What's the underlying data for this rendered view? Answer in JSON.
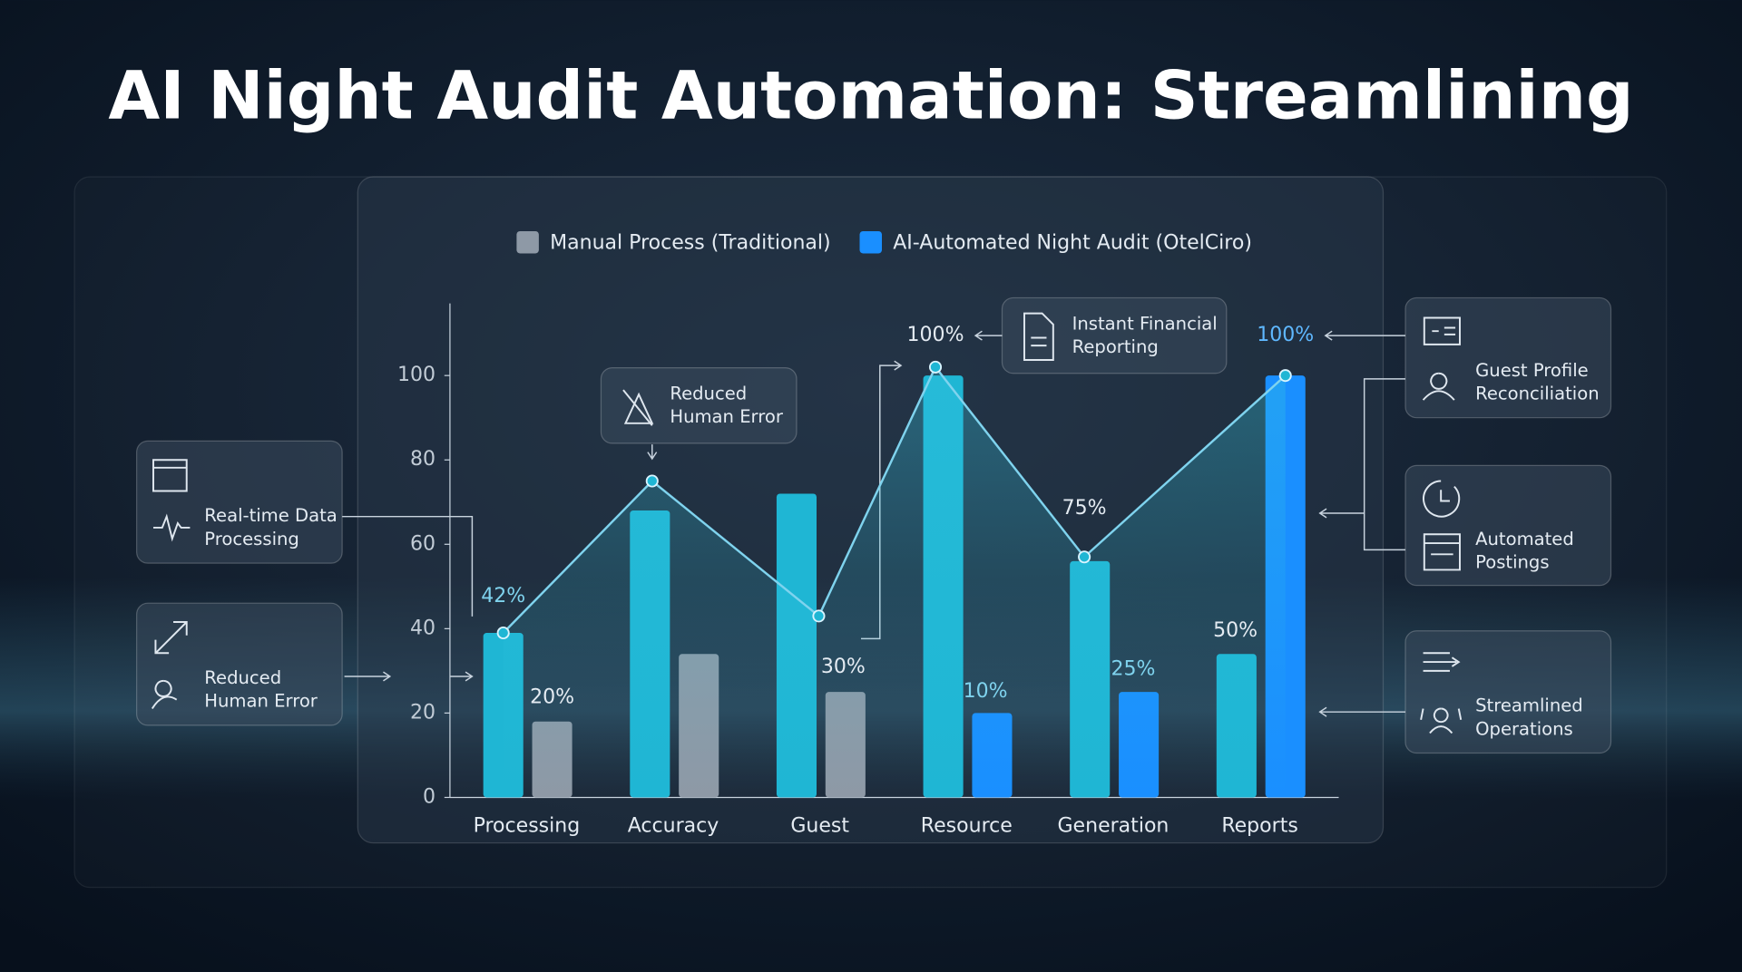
{
  "title": "AI Night Audit Automation: Streamlining",
  "chart_data": {
    "type": "bar",
    "categories": [
      "Processing",
      "Accuracy",
      "Guest",
      "Resource",
      "Generation",
      "Reports"
    ],
    "series": [
      {
        "name": "Manual Process (Traditional)",
        "color": "#8e99a6",
        "values": [
          18,
          34,
          25,
          null,
          null,
          null
        ]
      },
      {
        "name": "AI-Automated Night Audit (OtelCiro)",
        "color": "#1a8fff",
        "values": [
          null,
          null,
          null,
          20,
          25,
          100
        ]
      }
    ],
    "bars": {
      "color": "#1fb6d4",
      "values": [
        39,
        68,
        72,
        100,
        56,
        34
      ]
    },
    "line": {
      "color": "#7fd3ee",
      "values": [
        39,
        75,
        43,
        102,
        57,
        100
      ]
    },
    "ylim": [
      0,
      117
    ],
    "yticks": [
      0,
      20,
      40,
      60,
      80,
      100
    ],
    "legend": "top",
    "annotations": [
      "42%",
      "20%",
      "30%",
      "100%",
      "10%",
      "75%",
      "25%",
      "50%",
      "100%"
    ]
  },
  "cards": [
    {
      "lines": [
        "Real-time Data",
        "Processing"
      ]
    },
    {
      "lines": [
        "Reduced",
        "Human Error"
      ]
    },
    {
      "lines": [
        "Reduced",
        "Human Error"
      ]
    },
    {
      "lines": [
        "Instant Financial",
        "Reporting"
      ]
    },
    {
      "lines": [
        "Guest Profile",
        "Reconciliation"
      ]
    },
    {
      "lines": [
        "Automated",
        "Postings"
      ]
    },
    {
      "lines": [
        "Streamlined",
        "Operations"
      ]
    }
  ]
}
